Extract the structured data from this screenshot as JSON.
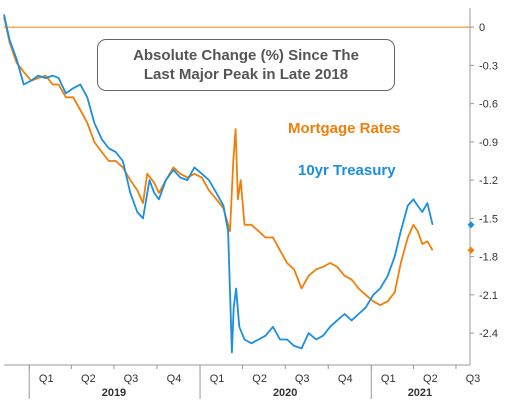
{
  "chart_data": {
    "type": "line",
    "title": [
      "Absolute Change (%) Since The",
      "Last Major Peak in Late 2018"
    ],
    "xlabel": "",
    "ylabel": "",
    "ylim": [
      -2.65,
      0.15
    ],
    "xlim": [
      "2018-11-08",
      "2021-07-31"
    ],
    "y_ticks": [
      0,
      -0.3,
      -0.6,
      -0.9,
      -1.2,
      -1.5,
      -1.8,
      -2.1,
      -2.4
    ],
    "y_tick_labels": [
      "0",
      "-0.3",
      "-0.6",
      "-0.9",
      "-1.2",
      "-1.5",
      "-1.8",
      "-2.1",
      "-2.4"
    ],
    "x_ticks": [
      {
        "label": "Q1",
        "date": "2019-01-01"
      },
      {
        "label": "Q2",
        "date": "2019-04-01"
      },
      {
        "label": "Q3",
        "date": "2019-07-01"
      },
      {
        "label": "Q4",
        "date": "2019-10-01"
      },
      {
        "label": "Q1",
        "date": "2020-01-01"
      },
      {
        "label": "Q2",
        "date": "2020-04-01"
      },
      {
        "label": "Q3",
        "date": "2020-07-01"
      },
      {
        "label": "Q4",
        "date": "2020-10-01"
      },
      {
        "label": "Q1",
        "date": "2021-01-01"
      },
      {
        "label": "Q2",
        "date": "2021-04-01"
      },
      {
        "label": "Q3",
        "date": "2021-07-01"
      }
    ],
    "years": [
      {
        "label": "2019",
        "date": "2019-07-01"
      },
      {
        "label": "2020",
        "date": "2020-07-01"
      },
      {
        "label": "2021",
        "date": "2021-04-15"
      }
    ],
    "reference_line": 0,
    "legend_placement": "right",
    "grid": false,
    "series": [
      {
        "name": "Mortgage Rates",
        "color": "#F07F09",
        "end_marker_value": -1.75,
        "points": [
          [
            "2018-11-08",
            0.08
          ],
          [
            "2018-11-20",
            -0.12
          ],
          [
            "2018-12-05",
            -0.28
          ],
          [
            "2018-12-20",
            -0.35
          ],
          [
            "2019-01-05",
            -0.42
          ],
          [
            "2019-01-20",
            -0.4
          ],
          [
            "2019-02-05",
            -0.38
          ],
          [
            "2019-02-20",
            -0.45
          ],
          [
            "2019-03-05",
            -0.45
          ],
          [
            "2019-03-20",
            -0.55
          ],
          [
            "2019-04-05",
            -0.55
          ],
          [
            "2019-04-20",
            -0.65
          ],
          [
            "2019-05-05",
            -0.75
          ],
          [
            "2019-05-20",
            -0.9
          ],
          [
            "2019-06-05",
            -0.98
          ],
          [
            "2019-06-20",
            -1.05
          ],
          [
            "2019-07-05",
            -1.05
          ],
          [
            "2019-07-20",
            -1.1
          ],
          [
            "2019-08-05",
            -1.2
          ],
          [
            "2019-08-20",
            -1.28
          ],
          [
            "2019-09-01",
            -1.38
          ],
          [
            "2019-09-10",
            -1.15
          ],
          [
            "2019-09-25",
            -1.22
          ],
          [
            "2019-10-05",
            -1.3
          ],
          [
            "2019-10-20",
            -1.2
          ],
          [
            "2019-11-05",
            -1.1
          ],
          [
            "2019-11-20",
            -1.15
          ],
          [
            "2019-12-05",
            -1.18
          ],
          [
            "2019-12-20",
            -1.15
          ],
          [
            "2020-01-05",
            -1.18
          ],
          [
            "2020-01-20",
            -1.28
          ],
          [
            "2020-02-05",
            -1.35
          ],
          [
            "2020-02-20",
            -1.42
          ],
          [
            "2020-03-05",
            -1.6
          ],
          [
            "2020-03-12",
            -1.05
          ],
          [
            "2020-03-17",
            -0.8
          ],
          [
            "2020-03-22",
            -1.35
          ],
          [
            "2020-03-28",
            -1.2
          ],
          [
            "2020-04-05",
            -1.55
          ],
          [
            "2020-04-20",
            -1.55
          ],
          [
            "2020-05-05",
            -1.6
          ],
          [
            "2020-05-20",
            -1.65
          ],
          [
            "2020-06-05",
            -1.65
          ],
          [
            "2020-06-20",
            -1.75
          ],
          [
            "2020-07-05",
            -1.85
          ],
          [
            "2020-07-20",
            -1.9
          ],
          [
            "2020-08-05",
            -2.05
          ],
          [
            "2020-08-20",
            -1.95
          ],
          [
            "2020-09-05",
            -1.9
          ],
          [
            "2020-09-20",
            -1.88
          ],
          [
            "2020-10-05",
            -1.85
          ],
          [
            "2020-10-20",
            -1.88
          ],
          [
            "2020-11-05",
            -1.95
          ],
          [
            "2020-11-20",
            -1.98
          ],
          [
            "2020-12-05",
            -2.05
          ],
          [
            "2020-12-20",
            -2.1
          ],
          [
            "2021-01-05",
            -2.15
          ],
          [
            "2021-01-20",
            -2.18
          ],
          [
            "2021-02-05",
            -2.15
          ],
          [
            "2021-02-20",
            -2.08
          ],
          [
            "2021-03-05",
            -1.85
          ],
          [
            "2021-03-20",
            -1.65
          ],
          [
            "2021-04-01",
            -1.55
          ],
          [
            "2021-04-10",
            -1.6
          ],
          [
            "2021-04-20",
            -1.7
          ],
          [
            "2021-05-01",
            -1.68
          ],
          [
            "2021-05-12",
            -1.75
          ]
        ]
      },
      {
        "name": "10yr Treasury",
        "color": "#1A8FE0",
        "end_marker_value": -1.55,
        "points": [
          [
            "2018-11-08",
            0.1
          ],
          [
            "2018-11-20",
            -0.1
          ],
          [
            "2018-12-05",
            -0.25
          ],
          [
            "2018-12-20",
            -0.45
          ],
          [
            "2019-01-05",
            -0.42
          ],
          [
            "2019-01-20",
            -0.38
          ],
          [
            "2019-02-05",
            -0.4
          ],
          [
            "2019-02-20",
            -0.38
          ],
          [
            "2019-03-05",
            -0.4
          ],
          [
            "2019-03-20",
            -0.52
          ],
          [
            "2019-04-05",
            -0.48
          ],
          [
            "2019-04-20",
            -0.45
          ],
          [
            "2019-05-05",
            -0.55
          ],
          [
            "2019-05-20",
            -0.75
          ],
          [
            "2019-06-05",
            -0.88
          ],
          [
            "2019-06-20",
            -0.95
          ],
          [
            "2019-07-05",
            -0.98
          ],
          [
            "2019-07-20",
            -1.05
          ],
          [
            "2019-08-05",
            -1.3
          ],
          [
            "2019-08-20",
            -1.45
          ],
          [
            "2019-09-01",
            -1.5
          ],
          [
            "2019-09-15",
            -1.2
          ],
          [
            "2019-09-25",
            -1.3
          ],
          [
            "2019-10-05",
            -1.35
          ],
          [
            "2019-10-20",
            -1.2
          ],
          [
            "2019-11-05",
            -1.12
          ],
          [
            "2019-11-20",
            -1.18
          ],
          [
            "2019-12-05",
            -1.2
          ],
          [
            "2019-12-20",
            -1.1
          ],
          [
            "2020-01-05",
            -1.15
          ],
          [
            "2020-01-20",
            -1.2
          ],
          [
            "2020-02-05",
            -1.3
          ],
          [
            "2020-02-20",
            -1.4
          ],
          [
            "2020-03-01",
            -1.6
          ],
          [
            "2020-03-09",
            -2.55
          ],
          [
            "2020-03-13",
            -2.2
          ],
          [
            "2020-03-18",
            -2.05
          ],
          [
            "2020-03-25",
            -2.35
          ],
          [
            "2020-04-05",
            -2.45
          ],
          [
            "2020-04-20",
            -2.48
          ],
          [
            "2020-05-05",
            -2.45
          ],
          [
            "2020-05-20",
            -2.42
          ],
          [
            "2020-06-05",
            -2.35
          ],
          [
            "2020-06-20",
            -2.45
          ],
          [
            "2020-07-05",
            -2.45
          ],
          [
            "2020-07-20",
            -2.5
          ],
          [
            "2020-08-05",
            -2.52
          ],
          [
            "2020-08-20",
            -2.4
          ],
          [
            "2020-09-05",
            -2.45
          ],
          [
            "2020-09-20",
            -2.42
          ],
          [
            "2020-10-05",
            -2.35
          ],
          [
            "2020-10-20",
            -2.3
          ],
          [
            "2020-11-05",
            -2.25
          ],
          [
            "2020-11-20",
            -2.3
          ],
          [
            "2020-12-05",
            -2.25
          ],
          [
            "2020-12-20",
            -2.2
          ],
          [
            "2021-01-05",
            -2.1
          ],
          [
            "2021-01-20",
            -2.05
          ],
          [
            "2021-02-05",
            -1.95
          ],
          [
            "2021-02-20",
            -1.8
          ],
          [
            "2021-03-05",
            -1.6
          ],
          [
            "2021-03-20",
            -1.4
          ],
          [
            "2021-04-01",
            -1.35
          ],
          [
            "2021-04-10",
            -1.4
          ],
          [
            "2021-04-20",
            -1.45
          ],
          [
            "2021-05-01",
            -1.38
          ],
          [
            "2021-05-12",
            -1.55
          ]
        ]
      }
    ]
  }
}
